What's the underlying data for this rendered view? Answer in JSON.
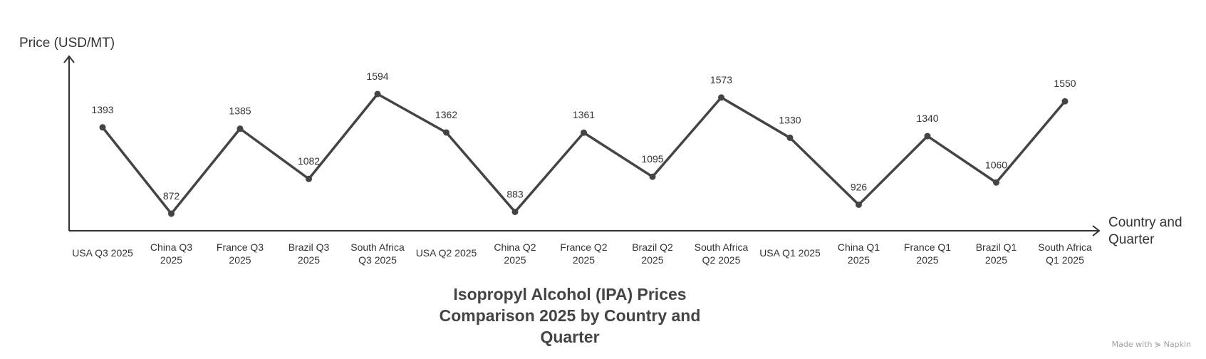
{
  "chart_data": {
    "type": "line",
    "title_lines": [
      "Isopropyl Alcohol (IPA) Prices",
      "Comparison 2025 by Country and",
      "Quarter"
    ],
    "ylabel": "Price (USD/MT)",
    "xlabel_lines": [
      "Country and",
      "Quarter"
    ],
    "categories": [
      "USA Q3 2025",
      "China Q3 2025",
      "France Q3 2025",
      "Brazil Q3 2025",
      "South Africa Q3 2025",
      "USA Q2 2025",
      "China Q2 2025",
      "France Q2 2025",
      "Brazil Q2 2025",
      "South Africa Q2 2025",
      "USA Q1 2025",
      "China Q1 2025",
      "France Q1 2025",
      "Brazil Q1 2025",
      "South Africa Q1 2025"
    ],
    "category_label_lines": [
      [
        "USA Q3 2025"
      ],
      [
        "China Q3",
        "2025"
      ],
      [
        "France Q3",
        "2025"
      ],
      [
        "Brazil Q3",
        "2025"
      ],
      [
        "South Africa",
        "Q3 2025"
      ],
      [
        "USA Q2 2025"
      ],
      [
        "China Q2",
        "2025"
      ],
      [
        "France Q2",
        "2025"
      ],
      [
        "Brazil Q2",
        "2025"
      ],
      [
        "South Africa",
        "Q2 2025"
      ],
      [
        "USA Q1 2025"
      ],
      [
        "China Q1",
        "2025"
      ],
      [
        "France Q1",
        "2025"
      ],
      [
        "Brazil Q1",
        "2025"
      ],
      [
        "South Africa",
        "Q1 2025"
      ]
    ],
    "values": [
      1393,
      872,
      1385,
      1082,
      1594,
      1362,
      883,
      1361,
      1095,
      1573,
      1330,
      926,
      1340,
      1060,
      1550
    ],
    "ylim": [
      770,
      1700
    ],
    "grid": false,
    "legend": "none",
    "line_color": "#444444"
  },
  "footer": {
    "credit": "Made with ⋟ Napkin"
  }
}
